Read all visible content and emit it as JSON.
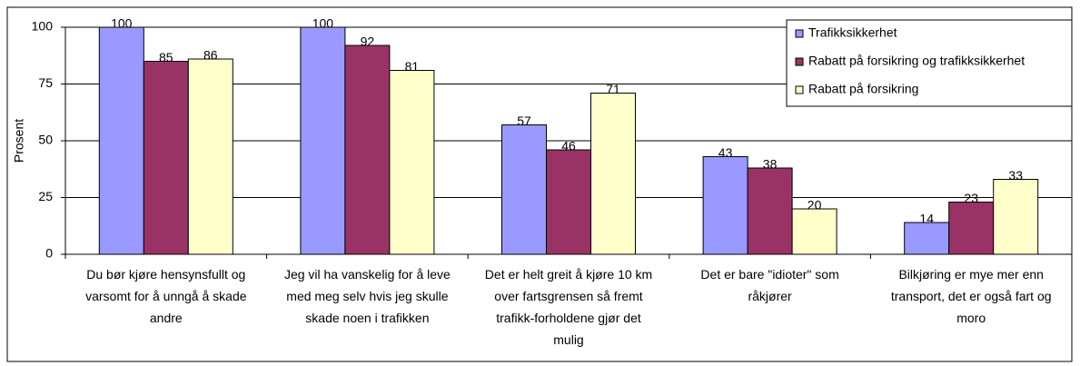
{
  "chart_data": {
    "type": "bar",
    "y_label": "Prosent",
    "categories": [
      "Du bør kjøre hensynsfullt og varsomt for å unngå å skade andre",
      "Jeg vil ha vanskelig for å leve med meg selv hvis jeg skulle skade noen i trafikken",
      "Det er helt greit å kjøre 10 km over fartsgrensen så fremt trafikk-forholdene gjør det mulig",
      "Det er bare \"idioter\" som råkjører",
      "Bilkjøring er mye mer enn transport, det er også fart og moro"
    ],
    "series": [
      {
        "name": "Trafikksikkerhet",
        "color": "#9999ff",
        "values": [
          100,
          100,
          57,
          43,
          14
        ]
      },
      {
        "name": "Rabatt på forsikring og trafikksikkerhet",
        "color": "#993366",
        "values": [
          85,
          92,
          46,
          38,
          23
        ]
      },
      {
        "name": "Rabatt på forsikring",
        "color": "#ffffcc",
        "values": [
          86,
          81,
          71,
          20,
          33
        ]
      }
    ],
    "ylim": [
      0,
      100
    ],
    "yticks": [
      0,
      25,
      50,
      75,
      100
    ],
    "grid": true,
    "legend": "top-right"
  }
}
